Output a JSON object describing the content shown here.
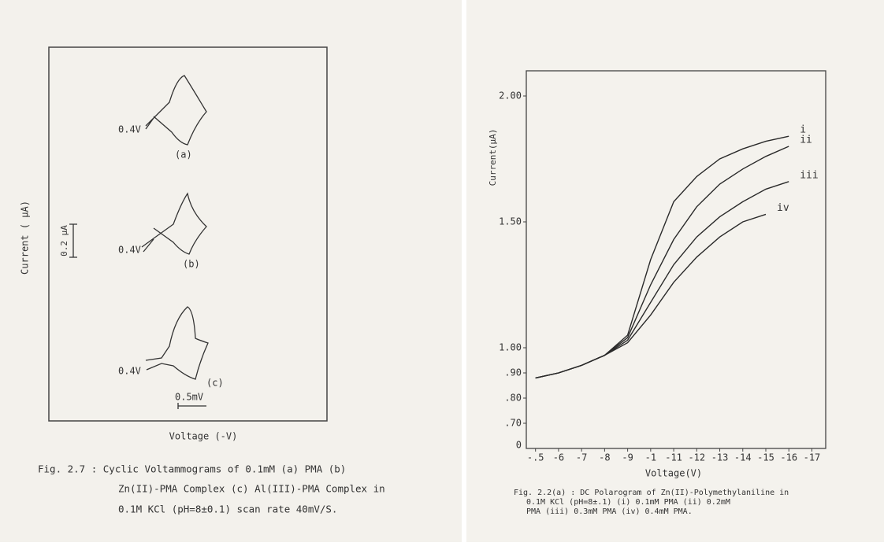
{
  "cv_figure": {
    "y_label": "Current ( µA)",
    "x_label": "Voltage (-V)",
    "current_scale": "0.2 µA",
    "voltage_scale": "0.5mV",
    "curves": [
      {
        "potential": "0.4V",
        "label": "(a)"
      },
      {
        "potential": "0.4V",
        "label": "(b)"
      },
      {
        "potential": "0.4V",
        "label": "(c)"
      }
    ],
    "caption": [
      "Fig. 2.7 : Cyclic Voltammograms of 0.1mM (a) PMA (b)",
      "Zn(II)-PMA Complex (c) Al(III)-PMA Complex in",
      "0.1M KCl (pH=8±0.1) scan rate 40mV/S."
    ]
  },
  "chart_data": {
    "type": "line",
    "y_label": "Current(µA)",
    "x_label": "Voltage(V)",
    "caption": [
      "Fig. 2.2(a) : DC Polarogram of Zn(II)-Polymethylaniline in",
      "0.1M KCl (pH=8±.1) (i) 0.1mM PMA (ii) 0.2mM",
      "PMA (iii) 0.3mM PMA (iv) 0.4mM PMA."
    ],
    "x": [
      -0.5,
      -0.6,
      -0.7,
      -0.8,
      -0.9,
      -1.0,
      -1.1,
      -1.2,
      -1.3,
      -1.4,
      -1.5,
      -1.6
    ],
    "xlim": [
      -0.46,
      -1.76
    ],
    "xticks": [
      {
        "value": -0.5,
        "label": "-.5"
      },
      {
        "value": -0.6,
        "label": "-6"
      },
      {
        "value": -0.7,
        "label": "-7"
      },
      {
        "value": -0.8,
        "label": "-8"
      },
      {
        "value": -0.9,
        "label": "-9"
      },
      -1,
      {
        "value": -1.1,
        "label": "-11"
      },
      {
        "value": -1.2,
        "label": "-12"
      },
      {
        "value": -1.3,
        "label": "-13"
      },
      {
        "value": -1.4,
        "label": "-14"
      },
      {
        "value": -1.5,
        "label": "-15"
      },
      {
        "value": -1.6,
        "label": "-16"
      },
      {
        "value": -1.7,
        "label": "-17"
      }
    ],
    "ylim": [
      0.6,
      2.1
    ],
    "yticks": [
      {
        "value": 2,
        "label": "2.00"
      },
      {
        "value": 1.5,
        "label": "1.50"
      },
      {
        "value": 1,
        "label": "1.00"
      },
      {
        "value": 0.9,
        "label": ".90"
      },
      {
        "value": 0.8,
        "label": ".80"
      },
      {
        "value": 0.7,
        "label": ".70"
      }
    ],
    "y_axis_origin": "0",
    "grid": false,
    "series": [
      {
        "name": "i",
        "color": "#2a2a2a",
        "values": [
          0.88,
          0.9,
          0.93,
          0.97,
          1.05,
          1.35,
          1.58,
          1.68,
          1.75,
          1.79,
          1.82,
          1.84
        ]
      },
      {
        "name": "ii",
        "color": "#2a2a2a",
        "values": [
          0.88,
          0.9,
          0.93,
          0.97,
          1.04,
          1.25,
          1.43,
          1.56,
          1.65,
          1.71,
          1.76,
          1.8
        ]
      },
      {
        "name": "iii",
        "color": "#2a2a2a",
        "values": [
          0.88,
          0.9,
          0.93,
          0.97,
          1.03,
          1.18,
          1.33,
          1.44,
          1.52,
          1.58,
          1.63,
          1.66
        ]
      },
      {
        "name": "iv",
        "color": "#2a2a2a",
        "values": [
          0.88,
          0.9,
          0.93,
          0.97,
          1.02,
          1.13,
          1.26,
          1.36,
          1.44,
          1.5,
          1.53,
          null
        ]
      }
    ]
  }
}
